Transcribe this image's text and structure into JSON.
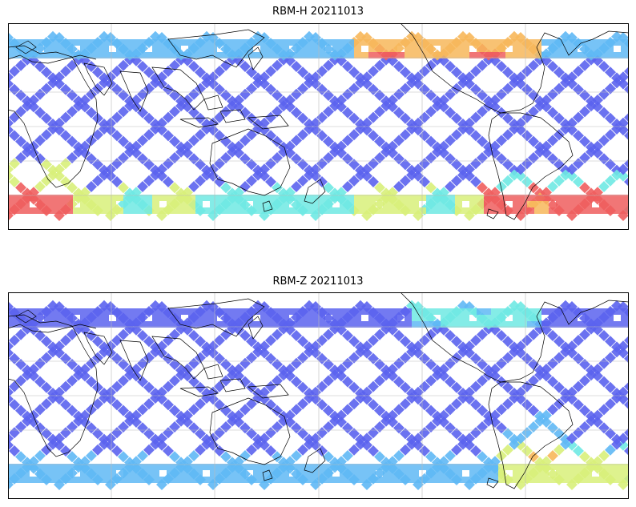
{
  "panels": [
    {
      "title": "RBM-H 20211013",
      "variable": "RBM-H",
      "date": "20211013"
    },
    {
      "title": "RBM-Z 20211013",
      "variable": "RBM-Z",
      "date": "20211013"
    }
  ],
  "colors": {
    "low": "#5b63ee",
    "mid_low": "#5fb8f5",
    "mid": "#6fe9e3",
    "mid_high": "#d8f07a",
    "high": "#f7b75a",
    "highest": "#ef5e5e",
    "coast": "#000000",
    "grid": "#bbbbbb"
  }
}
